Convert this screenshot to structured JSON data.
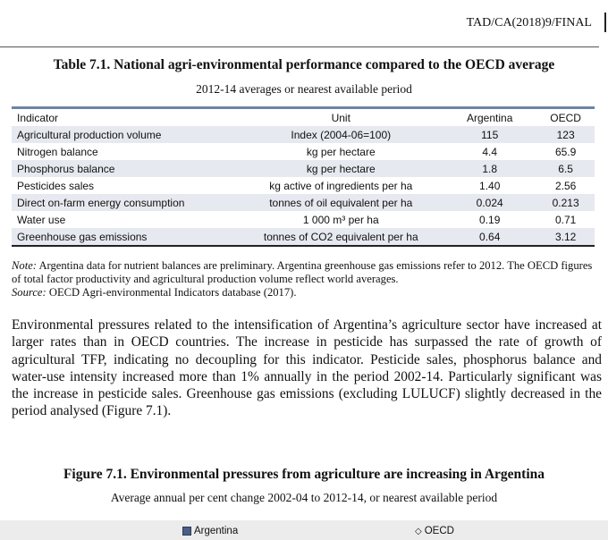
{
  "header": {
    "doc_code": "TAD/CA(2018)9/FINAL"
  },
  "table": {
    "title": "Table 7.1. National agri-environmental performance compared to the OECD average",
    "subtitle": "2012-14 averages or nearest available period",
    "columns": [
      "Indicator",
      "Unit",
      "Argentina",
      "OECD"
    ],
    "rows": [
      [
        "Agricultural production volume",
        "Index (2004-06=100)",
        "115",
        "123"
      ],
      [
        "Nitrogen balance",
        "kg per hectare",
        "4.4",
        "65.9"
      ],
      [
        "Phosphorus balance",
        "kg per hectare",
        "1.8",
        "6.5"
      ],
      [
        "Pesticides sales",
        "kg active of ingredients per ha",
        "1.40",
        "2.56"
      ],
      [
        "Direct on-farm energy consumption",
        "tonnes of oil equivalent per ha",
        "0.024",
        "0.213"
      ],
      [
        "Water use",
        "1 000 m³ per ha",
        "0.19",
        "0.71"
      ],
      [
        "Greenhouse gas emissions",
        "tonnes of CO2 equivalent per ha",
        "0.64",
        "3.12"
      ]
    ],
    "note_label": "Note:",
    "note": " Argentina data for nutrient balances are preliminary. Argentina greenhouse gas emissions refer to 2012. The OECD figures of total factor productivity and agricultural production volume reflect world averages.",
    "source_label": "Source:",
    "source": " OECD Agri-environmental Indicators database (2017)."
  },
  "body": "Environmental pressures related to the intensification of Argentina’s agriculture sector have increased at larger rates than in OECD countries. The increase in pesticide has surpassed the rate of growth of agricultural TFP, indicating no decoupling for this indicator. Pesticide sales, phosphorus balance and water-use intensity increased more than 1% annually in the period 2002-14. Particularly significant was the increase in pesticide sales. Greenhouse gas emissions (excluding LULUCF) slightly decreased in the period analysed (Figure 7.1).",
  "figure": {
    "title": "Figure 7.1. Environmental pressures from agriculture are increasing in Argentina",
    "subtitle": "Average annual per cent change 2002-04 to 2012-14, or nearest available period",
    "legend": [
      {
        "label": "Argentina",
        "marker": "square",
        "color": "#4a5f85"
      },
      {
        "label": "OECD",
        "marker": "diamond-outline"
      }
    ]
  }
}
